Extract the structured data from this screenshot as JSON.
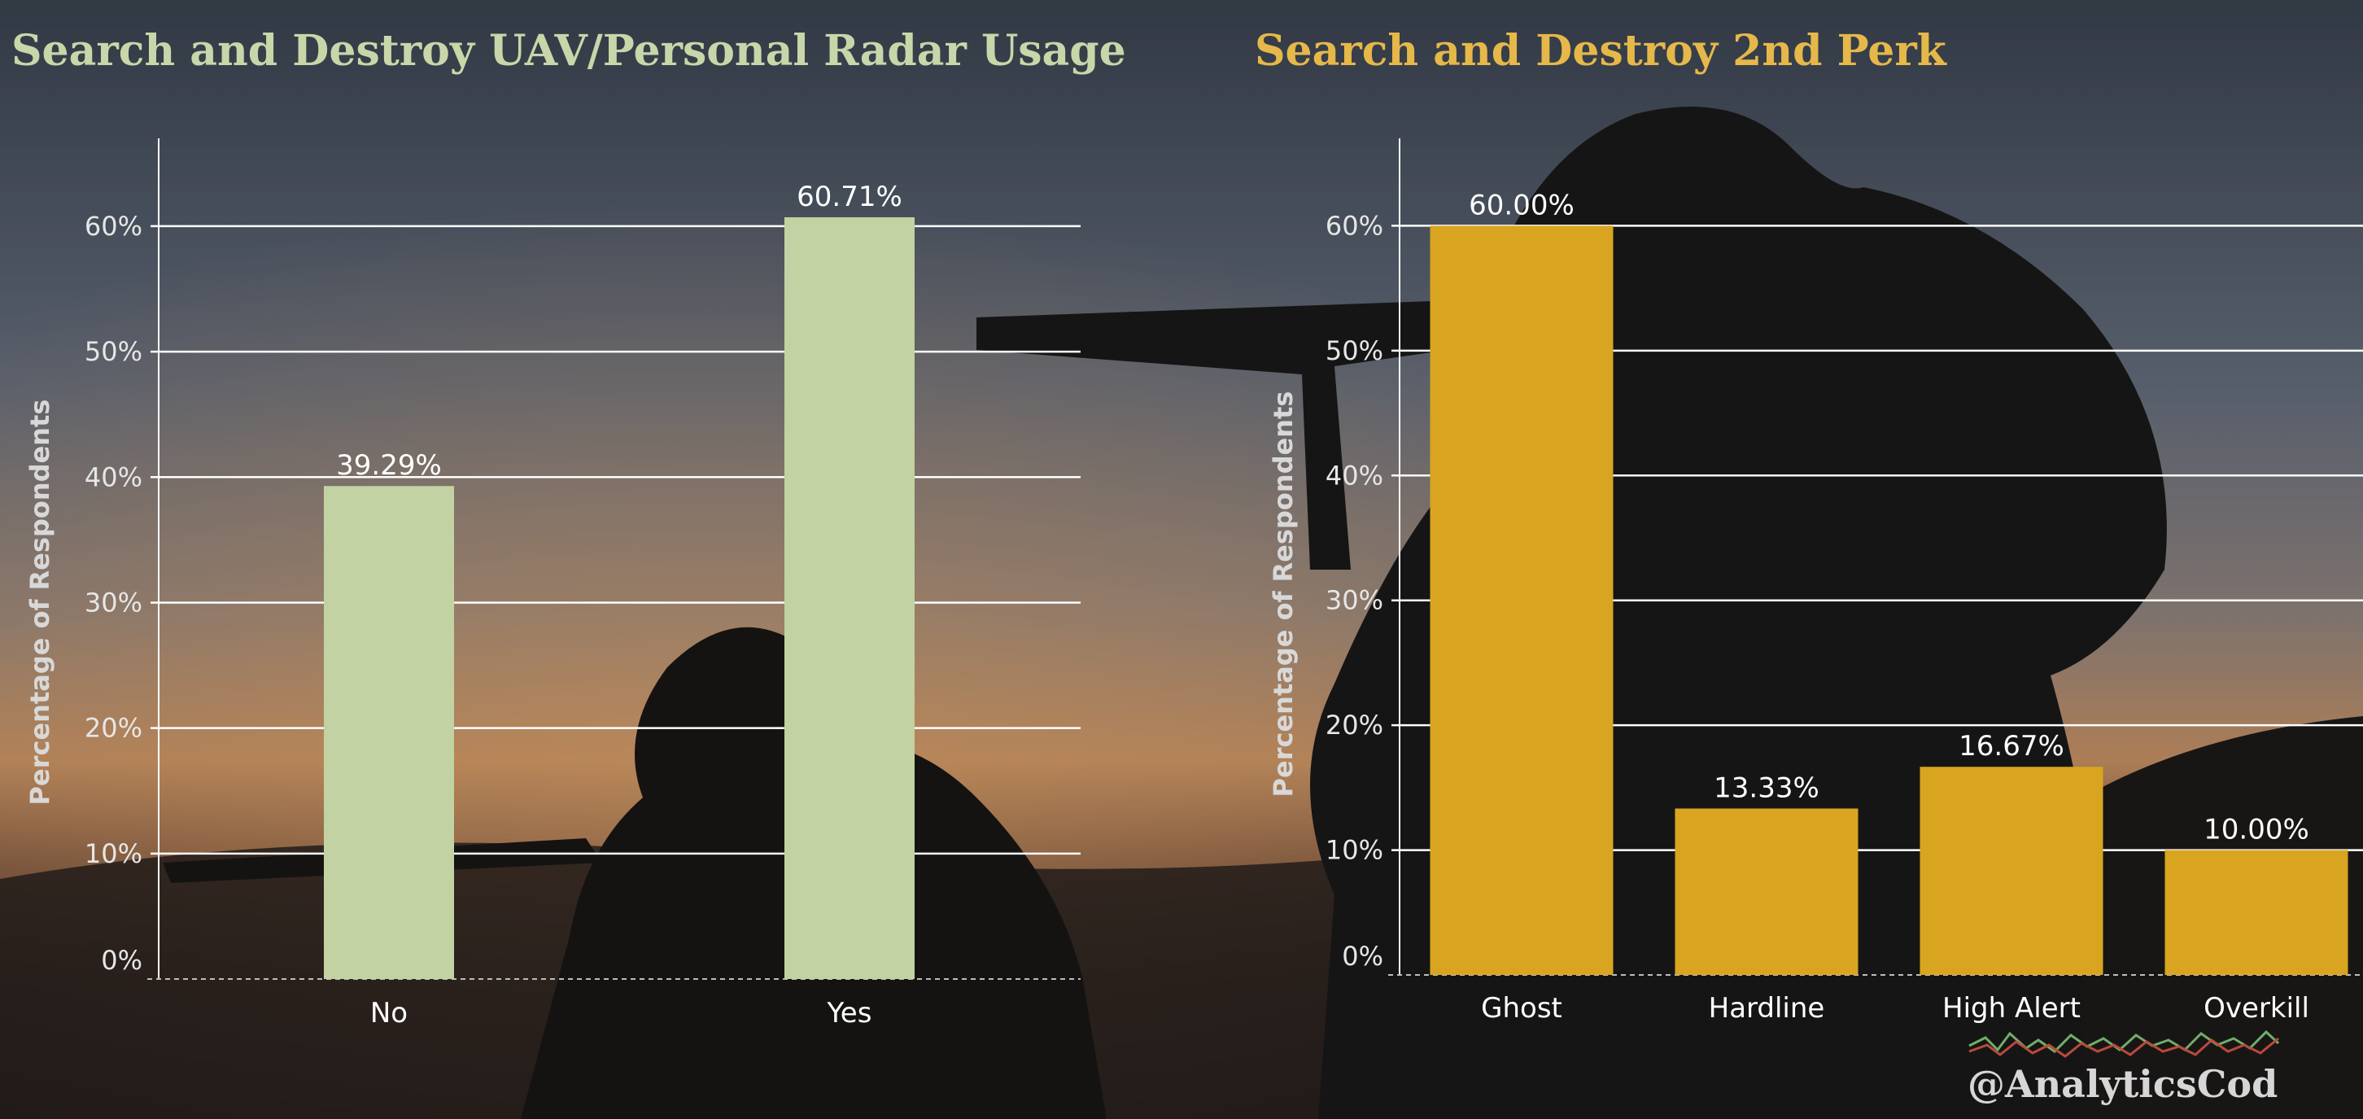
{
  "watermark": "@AnalyticsCod",
  "chart_data": [
    {
      "type": "bar",
      "title": "Search and Destroy UAV/Personal Radar Usage",
      "ylabel": "Percentage of Respondents",
      "xlabel": "",
      "categories": [
        "No",
        "Yes"
      ],
      "values": [
        39.29,
        60.71
      ],
      "data_labels": [
        "39.29%",
        "60.71%"
      ],
      "yticks": [
        0,
        10,
        20,
        30,
        40,
        50,
        60
      ],
      "ytick_labels": [
        "0%",
        "10%",
        "20%",
        "30%",
        "40%",
        "50%",
        "60%"
      ],
      "ylim": [
        0,
        67
      ],
      "grid": true,
      "bar_color": "#c2d2a2",
      "title_color": "#c9d6a9"
    },
    {
      "type": "bar",
      "title": "Search and Destroy 2nd Perk",
      "ylabel": "Percentage of Respondents",
      "xlabel": "",
      "categories": [
        "Ghost",
        "Hardline",
        "High Alert",
        "Overkill"
      ],
      "values": [
        60.0,
        13.33,
        16.67,
        10.0
      ],
      "data_labels": [
        "60.00%",
        "13.33%",
        "16.67%",
        "10.00%"
      ],
      "yticks": [
        0,
        10,
        20,
        30,
        40,
        50,
        60
      ],
      "ytick_labels": [
        "0%",
        "10%",
        "20%",
        "30%",
        "40%",
        "50%",
        "60%"
      ],
      "ylim": [
        0,
        67
      ],
      "grid": true,
      "bar_color": "#d9a521",
      "title_color": "#e6b84a"
    }
  ]
}
